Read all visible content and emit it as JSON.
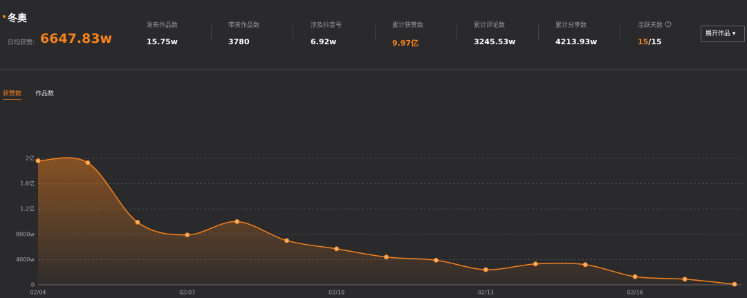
{
  "header": {
    "title": "冬奥",
    "daily_label": "日均获赞:",
    "daily_value": "6647.83w"
  },
  "stats": [
    {
      "label": "发布作品数",
      "value": "15.75w"
    },
    {
      "label": "带货作品数",
      "value": "3780"
    },
    {
      "label": "涉及抖音号",
      "value": "6.92w"
    },
    {
      "label": "累计获赞数",
      "value": "9.97亿"
    },
    {
      "label": "累计评论数",
      "value": "3245.53w"
    },
    {
      "label": "累计分享数",
      "value": "4213.93w"
    }
  ],
  "active_days": {
    "label": "活跃天数",
    "value": "15",
    "total": "/15"
  },
  "button": "展开作品",
  "tabs": [
    "获赞数",
    "作品数"
  ],
  "chart_data": {
    "type": "line",
    "categories": [
      "02/04",
      null,
      null,
      "02/07",
      null,
      null,
      "02/10",
      null,
      null,
      "02/13",
      null,
      null,
      "02/16",
      null,
      null
    ],
    "values": [
      19600,
      19300,
      9900,
      7900,
      10000,
      7000,
      5700,
      4400,
      3900,
      2400,
      3300,
      3200,
      1300,
      900,
      100
    ],
    "color": "#f7821b",
    "ylim": [
      0,
      20000
    ],
    "yticks": [
      0,
      {
        "value": 4000,
        "label": "4000w"
      },
      {
        "value": 8000,
        "label": "8000w"
      },
      {
        "value": 12000,
        "label": "1.2亿"
      },
      {
        "value": 16000,
        "label": "1.6亿"
      },
      {
        "value": 20000,
        "label": "2亿"
      }
    ],
    "grid": true
  }
}
